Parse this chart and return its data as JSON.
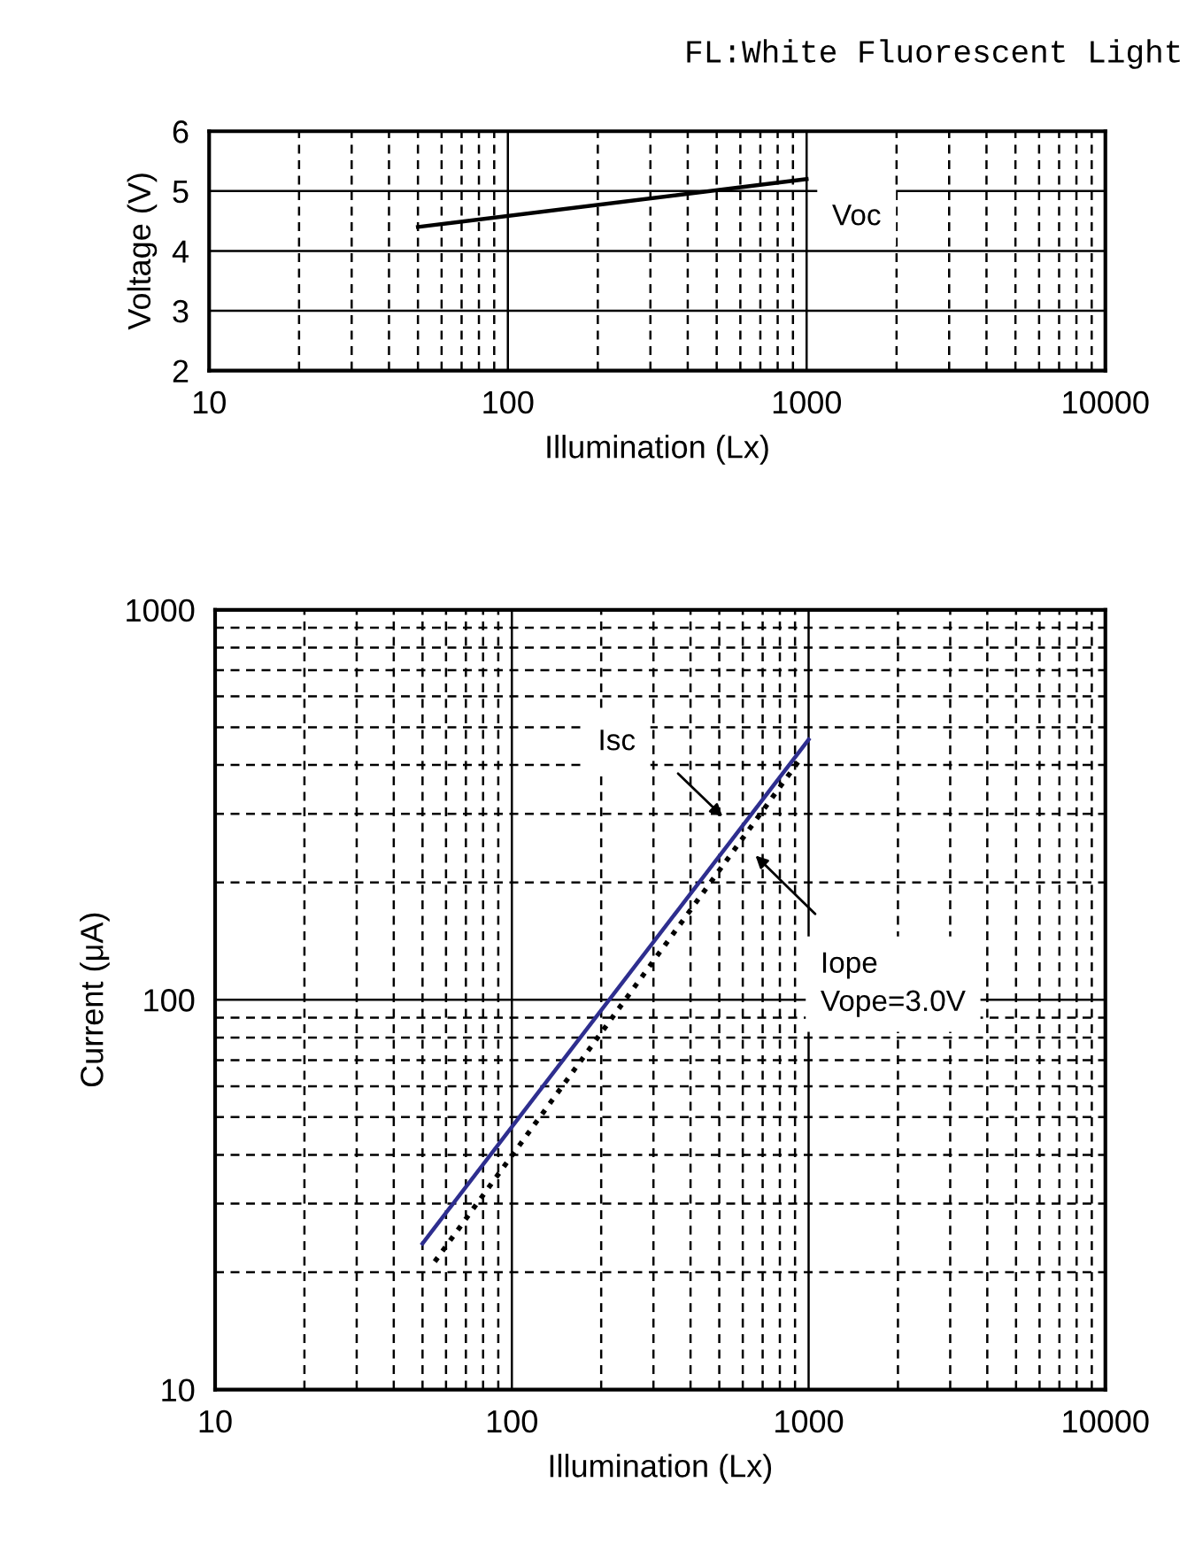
{
  "chart_data": [
    {
      "type": "line",
      "title": "FL:White Fluorescent Light",
      "xlabel": "Illumination (Lx)",
      "ylabel": "Voltage (V)",
      "log": "x",
      "xlim": [
        10,
        10000
      ],
      "xticks": [
        10,
        100,
        1000,
        10000
      ],
      "ylim": [
        2,
        6
      ],
      "yticks": [
        2,
        3,
        4,
        5,
        6
      ],
      "grid": true,
      "legend": false,
      "x": [
        50,
        1000
      ],
      "series": [
        {
          "color": "#000000",
          "values": [
            4.4,
            5.2
          ],
          "line_style": "solid"
        }
      ],
      "annotations": [
        "Voc"
      ]
    },
    {
      "type": "line",
      "xlabel": "Illumination (Lx)",
      "ylabel": "Current (μA)",
      "log": "xy",
      "xlim": [
        10,
        10000
      ],
      "xticks": [
        10,
        100,
        1000,
        10000
      ],
      "ylim": [
        10,
        1000
      ],
      "yticks": [
        10,
        100,
        1000
      ],
      "grid": true,
      "legend": false,
      "series": [
        {
          "color": "#2e2e8f",
          "x": [
            50,
            1000
          ],
          "values": [
            23.7,
            465
          ],
          "line_style": "solid"
        },
        {
          "color": "#000000",
          "x": [
            55,
            930
          ],
          "values": [
            21.3,
            411
          ],
          "line_style": "dotted"
        }
      ],
      "annotations": [
        "Isc",
        "Iope\nVope=3.0V"
      ]
    }
  ]
}
